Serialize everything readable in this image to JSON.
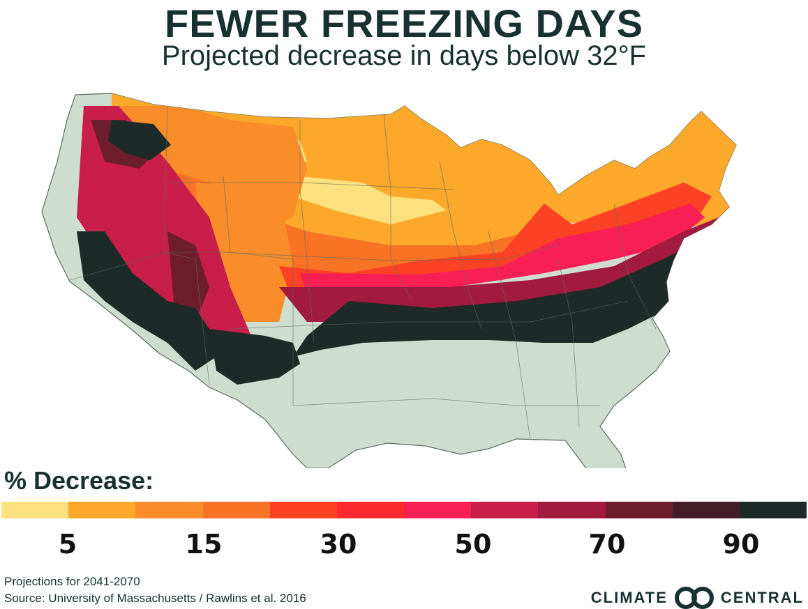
{
  "header": {
    "title": "FEWER FREEZING DAYS",
    "subtitle": "Projected decrease in days below 32°F"
  },
  "map": {
    "region": "contiguous-united-states",
    "base_color": "#cfdcd0",
    "border_color": "#5a6a62"
  },
  "legend": {
    "title": "% Decrease:",
    "colors": [
      "#fde17f",
      "#fba82b",
      "#f98d2a",
      "#f97326",
      "#fb4225",
      "#fa2a2e",
      "#f81f55",
      "#c81e49",
      "#a31a40",
      "#6e1d2f",
      "#421f28",
      "#1d2a27"
    ],
    "tick_labels": [
      "5",
      "15",
      "30",
      "50",
      "70",
      "90"
    ]
  },
  "footer": {
    "period": "Projections for 2041-2070",
    "source": "Source: University of Massachusetts / Rawlins et al. 2016",
    "logo_left": "CLIMATE",
    "logo_right": "CENTRAL"
  }
}
